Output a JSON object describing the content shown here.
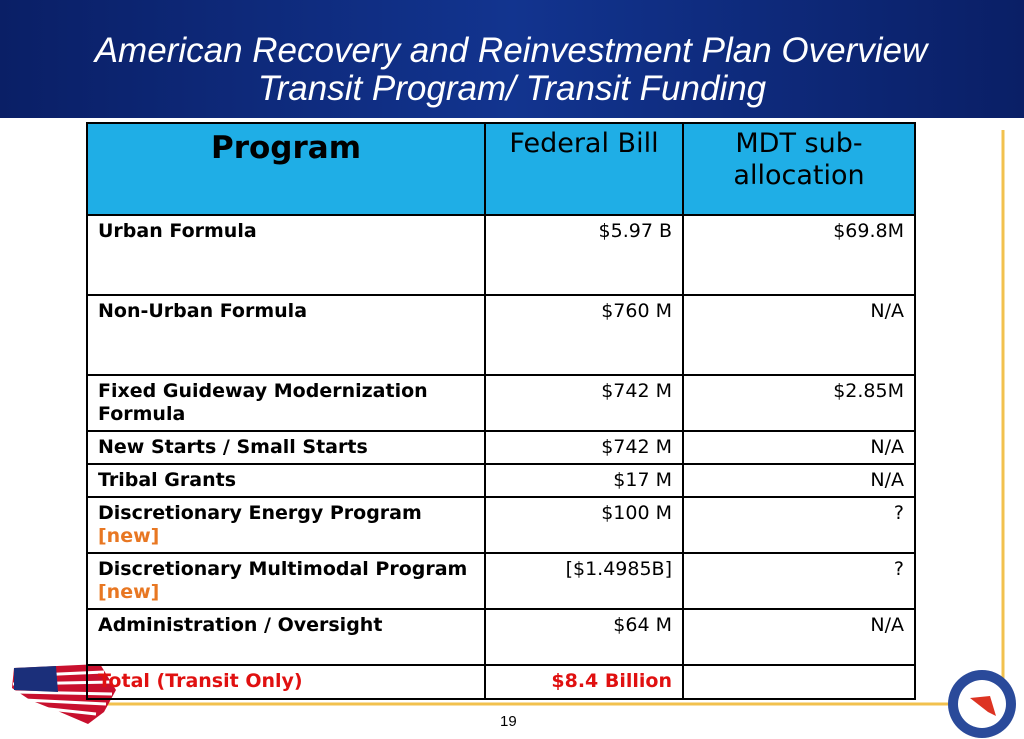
{
  "header": {
    "title_line1": "American Recovery and Reinvestment Plan Overview",
    "title_line2": "Transit Program/ Transit Funding"
  },
  "table": {
    "columns": [
      "Program",
      "Federal Bill",
      "MDT sub-allocation"
    ],
    "rows": [
      {
        "program": "Urban Formula",
        "federal": "$5.97 B",
        "mdt": "$69.8M"
      },
      {
        "program": "Non-Urban Formula",
        "federal": "$760 M",
        "mdt": "N/A"
      },
      {
        "program": "Fixed Guideway Modernization Formula",
        "federal": "$742 M",
        "mdt": "$2.85M"
      },
      {
        "program": "New Starts / Small Starts",
        "federal": "$742 M",
        "mdt": "N/A"
      },
      {
        "program": "Tribal Grants",
        "federal": "$17 M",
        "mdt": "N/A"
      },
      {
        "program": "Discretionary Energy Program",
        "tag": "[new]",
        "federal": "$100 M",
        "mdt": "?"
      },
      {
        "program": "Discretionary Multimodal Program",
        "tag": "[new]",
        "federal": "[$1.4985B]",
        "mdt": "?"
      },
      {
        "program": "Administration / Oversight",
        "federal": "$64 M",
        "mdt": "N/A"
      }
    ],
    "total": {
      "program": "Total (Transit Only)",
      "federal": "$8.4 Billion"
    }
  },
  "footer": {
    "page_number": "19"
  }
}
